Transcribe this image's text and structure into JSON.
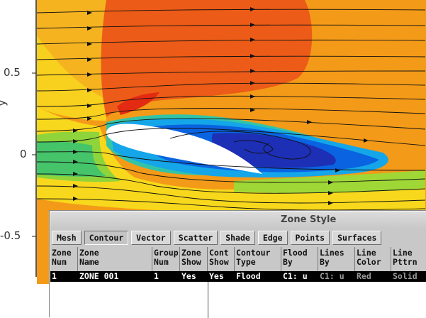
{
  "plot": {
    "y_axis_label": "y",
    "y_ticks": [
      "0.5",
      "0",
      "-0.5"
    ]
  },
  "dialog": {
    "title": "Zone Style",
    "mode_buttons": [
      "Mesh",
      "Contour",
      "Vector",
      "Scatter",
      "Shade",
      "Edge",
      "Points",
      "Surfaces"
    ],
    "active_mode": "Contour",
    "columns": [
      {
        "line1": "Zone",
        "line2": "Num"
      },
      {
        "line1": "Zone",
        "line2": "Name"
      },
      {
        "line1": "Group",
        "line2": "Num"
      },
      {
        "line1": "Zone",
        "line2": "Show"
      },
      {
        "line1": "Cont",
        "line2": "Show"
      },
      {
        "line1": "Contour",
        "line2": "Type"
      },
      {
        "line1": "Flood",
        "line2": "By"
      },
      {
        "line1": "Lines",
        "line2": "By"
      },
      {
        "line1": "Line",
        "line2": "Color"
      },
      {
        "line1": "Line",
        "line2": "Pttrn"
      }
    ],
    "rows": [
      [
        "1",
        "ZONE 001",
        "1",
        "Yes",
        "Yes",
        "Flood",
        "C1: u",
        "C1: u",
        "Red",
        "Solid"
      ]
    ]
  },
  "colors": {
    "selection": "#000000",
    "dialog_bg": "#c8c8c8"
  }
}
